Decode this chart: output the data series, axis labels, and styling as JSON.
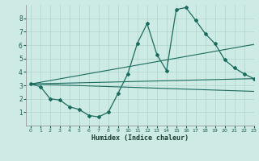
{
  "title": "",
  "xlabel": "Humidex (Indice chaleur)",
  "ylabel": "",
  "bg_color": "#ceeae4",
  "line_color": "#1a6b5e",
  "grid_color": "#aed4cc",
  "xlim": [
    -0.5,
    23
  ],
  "ylim": [
    0,
    9
  ],
  "xticks": [
    0,
    1,
    2,
    3,
    4,
    5,
    6,
    7,
    8,
    9,
    10,
    11,
    12,
    13,
    14,
    15,
    16,
    17,
    18,
    19,
    20,
    21,
    22,
    23
  ],
  "yticks": [
    1,
    2,
    3,
    4,
    5,
    6,
    7,
    8
  ],
  "series_main": {
    "x": [
      0,
      1,
      2,
      3,
      4,
      5,
      6,
      7,
      8,
      9,
      10,
      11,
      12,
      13,
      14,
      15,
      16,
      17,
      18,
      19,
      20,
      21,
      22,
      23
    ],
    "y": [
      3.1,
      2.9,
      2.0,
      1.9,
      1.4,
      1.2,
      0.75,
      0.65,
      1.0,
      2.4,
      3.85,
      6.15,
      7.6,
      5.3,
      4.1,
      8.65,
      8.8,
      7.85,
      6.85,
      6.1,
      4.9,
      4.3,
      3.85,
      3.5
    ]
  },
  "trend_lines": [
    {
      "x": [
        0,
        23
      ],
      "y": [
        3.1,
        3.5
      ]
    },
    {
      "x": [
        0,
        23
      ],
      "y": [
        3.1,
        6.05
      ]
    },
    {
      "x": [
        0,
        23
      ],
      "y": [
        3.1,
        2.55
      ]
    }
  ]
}
